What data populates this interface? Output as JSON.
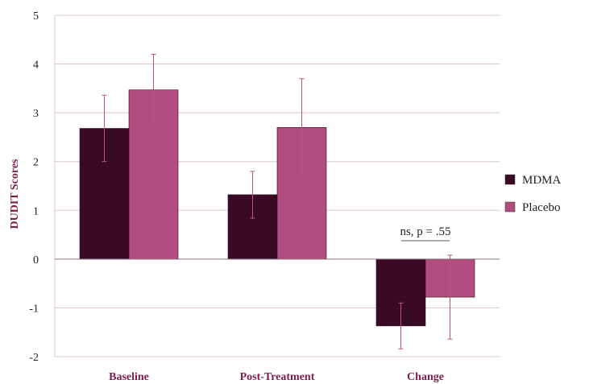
{
  "chart_data": {
    "type": "bar",
    "title": "",
    "xlabel": "",
    "ylabel": "DUDIT Scores",
    "ylim": [
      -2,
      5
    ],
    "yticks": [
      "5",
      "4",
      "3",
      "2",
      "1",
      "0",
      "-1",
      "-2"
    ],
    "ytick_values": [
      5,
      4,
      3,
      2,
      1,
      0,
      -1,
      -2
    ],
    "grid": true,
    "legend_position": "right",
    "categories": [
      "Baseline",
      "Post-Treatment",
      "Change"
    ],
    "series": [
      {
        "name": "MDMA",
        "color": "#3a0a24",
        "values": [
          2.68,
          1.32,
          -1.37
        ],
        "error": [
          0.68,
          0.48,
          0.47
        ]
      },
      {
        "name": "Placebo",
        "color": "#b24d7f",
        "values": [
          3.47,
          2.7,
          -0.78
        ],
        "error": [
          0.73,
          1.0,
          0.86
        ]
      }
    ],
    "annotation": {
      "text": "ns, p = .55",
      "category": "Change"
    }
  }
}
